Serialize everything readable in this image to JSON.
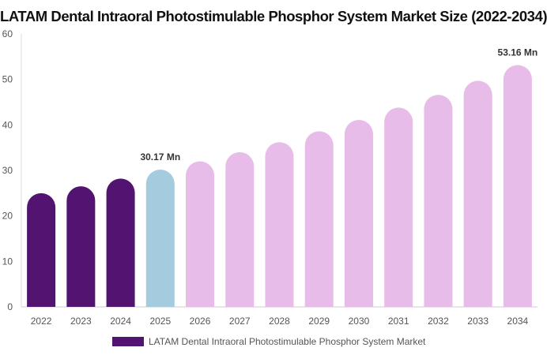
{
  "chart_data": {
    "type": "bar",
    "title": "LATAM Dental Intraoral Photostimulable Phosphor System Market Size (2022-2034)",
    "xlabel": "",
    "ylabel": "",
    "categories": [
      "2022",
      "2023",
      "2024",
      "2025",
      "2026",
      "2027",
      "2028",
      "2029",
      "2030",
      "2031",
      "2032",
      "2033",
      "2034"
    ],
    "series": [
      {
        "name": "LATAM Dental Intraoral Photostimulable Phosphor System Market",
        "values": [
          25.0,
          26.5,
          28.2,
          30.17,
          32.0,
          34.0,
          36.2,
          38.6,
          41.1,
          43.8,
          46.6,
          49.7,
          53.16
        ]
      }
    ],
    "bar_colors": [
      "#521470",
      "#521470",
      "#521470",
      "#a5cbdf",
      "#e8bce8",
      "#e8bce8",
      "#e8bce8",
      "#e8bce8",
      "#e8bce8",
      "#e8bce8",
      "#e8bce8",
      "#e8bce8",
      "#e8bce8"
    ],
    "data_labels": [
      {
        "category": "2025",
        "text": "30.17 Mn"
      },
      {
        "category": "2034",
        "text": "53.16 Mn"
      }
    ],
    "ylim": [
      0,
      60
    ],
    "yticks": [
      0,
      10,
      20,
      30,
      40,
      50,
      60
    ],
    "grid": false,
    "legend_position": "bottom"
  }
}
